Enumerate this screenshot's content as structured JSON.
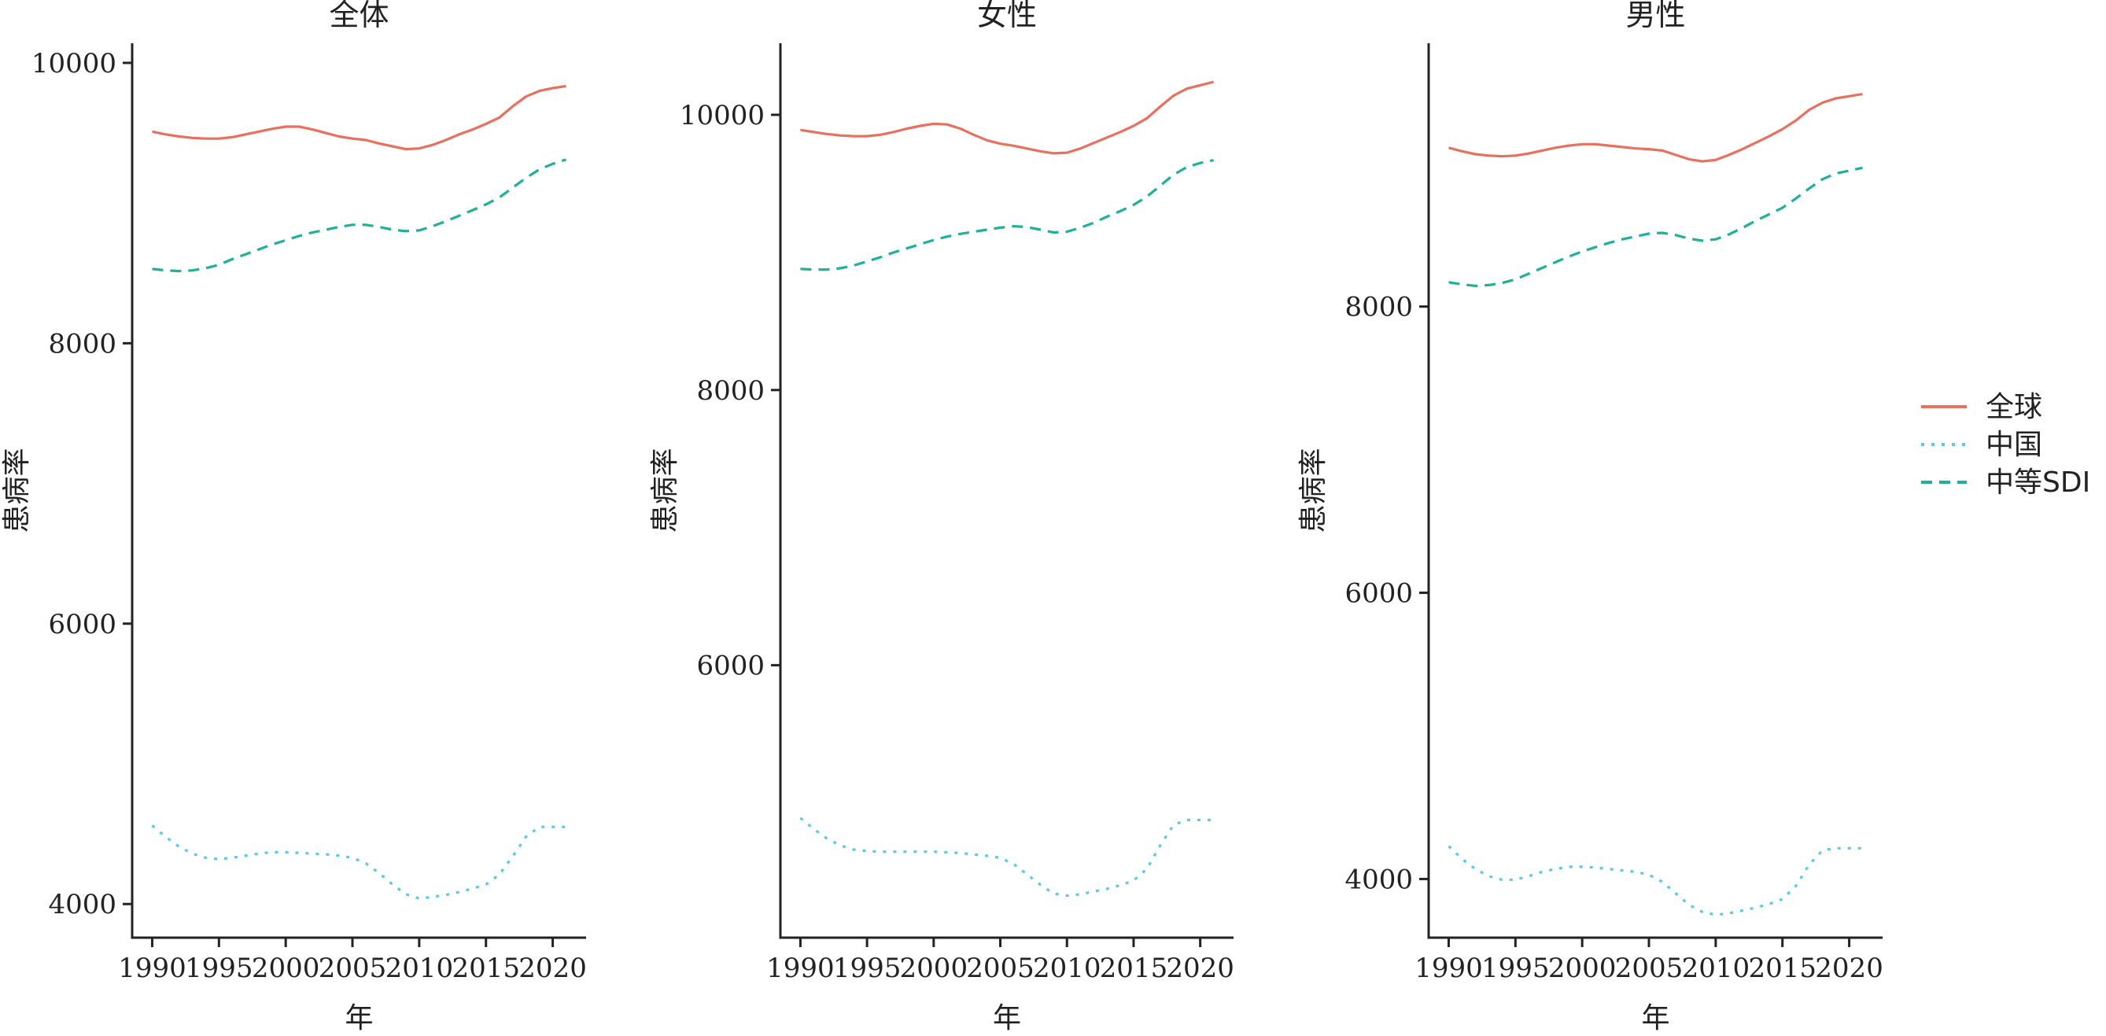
{
  "legend": {
    "title": "",
    "placement": "right",
    "entries": [
      {
        "label": "全球",
        "color": "#E8705E",
        "dash": "solid"
      },
      {
        "label": "中国",
        "color": "#5BC8E5",
        "dash": "dotted"
      },
      {
        "label": "中等SDI",
        "color": "#1FB09A",
        "dash": "dashed"
      }
    ]
  },
  "chart_data": [
    {
      "type": "line",
      "title": "全体",
      "xlabel": "年",
      "ylabel": "患病率",
      "xlim": [
        1988.5,
        2022.5
      ],
      "ylim": [
        3760,
        10140
      ],
      "xticks": [
        1990,
        1995,
        2000,
        2005,
        2010,
        2015,
        2020
      ],
      "yticks": [
        4000,
        6000,
        8000,
        10000
      ],
      "grid": false,
      "x": [
        1990,
        1991,
        1992,
        1993,
        1994,
        1995,
        1996,
        1997,
        1998,
        1999,
        2000,
        2001,
        2002,
        2003,
        2004,
        2005,
        2006,
        2007,
        2008,
        2009,
        2010,
        2011,
        2012,
        2013,
        2014,
        2015,
        2016,
        2017,
        2018,
        2019,
        2020,
        2021
      ],
      "series": [
        {
          "name": "全球",
          "values": [
            9510,
            9490,
            9475,
            9465,
            9460,
            9460,
            9470,
            9490,
            9510,
            9530,
            9545,
            9545,
            9525,
            9500,
            9475,
            9460,
            9450,
            9425,
            9405,
            9385,
            9390,
            9415,
            9450,
            9490,
            9525,
            9565,
            9610,
            9690,
            9760,
            9800,
            9820,
            9835
          ]
        },
        {
          "name": "中国",
          "values": [
            4560,
            4480,
            4410,
            4360,
            4330,
            4320,
            4330,
            4345,
            4360,
            4370,
            4370,
            4365,
            4360,
            4355,
            4345,
            4330,
            4290,
            4220,
            4140,
            4070,
            4040,
            4050,
            4065,
            4085,
            4110,
            4140,
            4210,
            4340,
            4480,
            4550,
            4550,
            4550
          ]
        },
        {
          "name": "中等SDI",
          "values": [
            8530,
            8520,
            8515,
            8520,
            8535,
            8560,
            8600,
            8635,
            8670,
            8705,
            8735,
            8765,
            8790,
            8810,
            8830,
            8845,
            8845,
            8830,
            8810,
            8800,
            8805,
            8835,
            8870,
            8910,
            8950,
            8990,
            9040,
            9110,
            9180,
            9240,
            9280,
            9310
          ]
        }
      ]
    },
    {
      "type": "line",
      "title": "女性",
      "xlabel": "年",
      "ylabel": "患病率",
      "xlim": [
        1988.5,
        2022.5
      ],
      "ylim": [
        4020,
        10520
      ],
      "xticks": [
        1990,
        1995,
        2000,
        2005,
        2010,
        2015,
        2020
      ],
      "yticks": [
        6000,
        8000,
        10000
      ],
      "grid": false,
      "x": [
        1990,
        1991,
        1992,
        1993,
        1994,
        1995,
        1996,
        1997,
        1998,
        1999,
        2000,
        2001,
        2002,
        2003,
        2004,
        2005,
        2006,
        2007,
        2008,
        2009,
        2010,
        2011,
        2012,
        2013,
        2014,
        2015,
        2016,
        2017,
        2018,
        2019,
        2020,
        2021
      ],
      "series": [
        {
          "name": "全球",
          "values": [
            9890,
            9875,
            9860,
            9850,
            9845,
            9845,
            9855,
            9875,
            9900,
            9920,
            9935,
            9930,
            9900,
            9855,
            9815,
            9790,
            9775,
            9755,
            9735,
            9720,
            9725,
            9755,
            9795,
            9835,
            9875,
            9920,
            9975,
            10060,
            10140,
            10190,
            10215,
            10240
          ]
        },
        {
          "name": "中国",
          "values": [
            4890,
            4810,
            4740,
            4690,
            4660,
            4650,
            4645,
            4645,
            4645,
            4645,
            4645,
            4640,
            4635,
            4625,
            4615,
            4600,
            4555,
            4480,
            4405,
            4340,
            4325,
            4335,
            4355,
            4375,
            4400,
            4435,
            4520,
            4690,
            4840,
            4875,
            4875,
            4875
          ]
        },
        {
          "name": "中等SDI",
          "values": [
            8880,
            8875,
            8875,
            8885,
            8905,
            8935,
            8965,
            9000,
            9030,
            9060,
            9090,
            9115,
            9135,
            9150,
            9165,
            9180,
            9190,
            9185,
            9165,
            9145,
            9150,
            9180,
            9215,
            9260,
            9300,
            9345,
            9405,
            9485,
            9565,
            9620,
            9650,
            9670
          ]
        }
      ]
    },
    {
      "type": "line",
      "title": "男性",
      "xlabel": "年",
      "ylabel": "患病率",
      "xlim": [
        1988.5,
        2022.5
      ],
      "ylim": [
        3590,
        9840
      ],
      "xticks": [
        1990,
        1995,
        2000,
        2005,
        2010,
        2015,
        2020
      ],
      "yticks": [
        4000,
        6000,
        8000
      ],
      "grid": false,
      "x": [
        1990,
        1991,
        1992,
        1993,
        1994,
        1995,
        1996,
        1997,
        1998,
        1999,
        2000,
        2001,
        2002,
        2003,
        2004,
        2005,
        2006,
        2007,
        2008,
        2009,
        2010,
        2011,
        2012,
        2013,
        2014,
        2015,
        2016,
        2017,
        2018,
        2019,
        2020,
        2021
      ],
      "series": [
        {
          "name": "全球",
          "values": [
            9110,
            9085,
            9065,
            9055,
            9050,
            9055,
            9070,
            9090,
            9110,
            9125,
            9135,
            9135,
            9125,
            9115,
            9105,
            9100,
            9090,
            9060,
            9030,
            9015,
            9025,
            9060,
            9100,
            9145,
            9190,
            9240,
            9300,
            9375,
            9425,
            9455,
            9470,
            9485
          ]
        },
        {
          "name": "中国",
          "values": [
            4230,
            4140,
            4070,
            4020,
            3995,
            3995,
            4020,
            4050,
            4070,
            4085,
            4085,
            4080,
            4070,
            4060,
            4050,
            4030,
            3980,
            3900,
            3820,
            3770,
            3750,
            3760,
            3780,
            3800,
            3825,
            3860,
            3950,
            4100,
            4200,
            4215,
            4215,
            4215
          ]
        },
        {
          "name": "中等SDI",
          "values": [
            8170,
            8155,
            8145,
            8150,
            8165,
            8190,
            8230,
            8270,
            8310,
            8350,
            8385,
            8415,
            8445,
            8470,
            8490,
            8510,
            8515,
            8500,
            8475,
            8460,
            8470,
            8505,
            8550,
            8600,
            8645,
            8690,
            8755,
            8825,
            8890,
            8930,
            8950,
            8970
          ]
        }
      ]
    }
  ]
}
